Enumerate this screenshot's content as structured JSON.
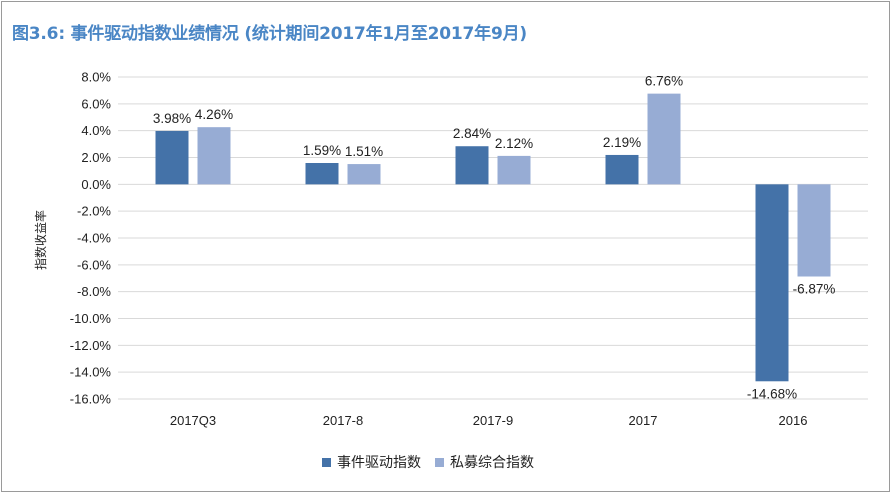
{
  "title": "图3.6: 事件驱动指数业绩情况 (统计期间2017年1月至2017年9月)",
  "colors": {
    "series1": "#4472a8",
    "series2": "#97acd4",
    "title": "#4a86c5",
    "grid": "#d9d9d9"
  },
  "chart_data": {
    "type": "bar",
    "title": "图3.6: 事件驱动指数业绩情况 (统计期间2017年1月至2017年9月)",
    "ylabel": "指数收益率",
    "xlabel": "",
    "categories": [
      "2017Q3",
      "2017-8",
      "2017-9",
      "2017",
      "2016"
    ],
    "series": [
      {
        "name": "事件驱动指数",
        "values": [
          3.98,
          1.59,
          2.84,
          2.19,
          -14.68
        ],
        "labels": [
          "3.98%",
          "1.59%",
          "2.84%",
          "2.19%",
          "-14.68%"
        ]
      },
      {
        "name": "私募综合指数",
        "values": [
          4.26,
          1.51,
          2.12,
          6.76,
          -6.87
        ],
        "labels": [
          "4.26%",
          "1.51%",
          "2.12%",
          "6.76%",
          "-6.87%"
        ]
      }
    ],
    "ylim": [
      -16,
      8
    ],
    "yticks": [
      "8.0%",
      "6.0%",
      "4.0%",
      "2.0%",
      "0.0%",
      "-2.0%",
      "-4.0%",
      "-6.0%",
      "-8.0%",
      "-10.0%",
      "-12.0%",
      "-14.0%",
      "-16.0%"
    ],
    "grid": true,
    "legend_position": "bottom"
  }
}
